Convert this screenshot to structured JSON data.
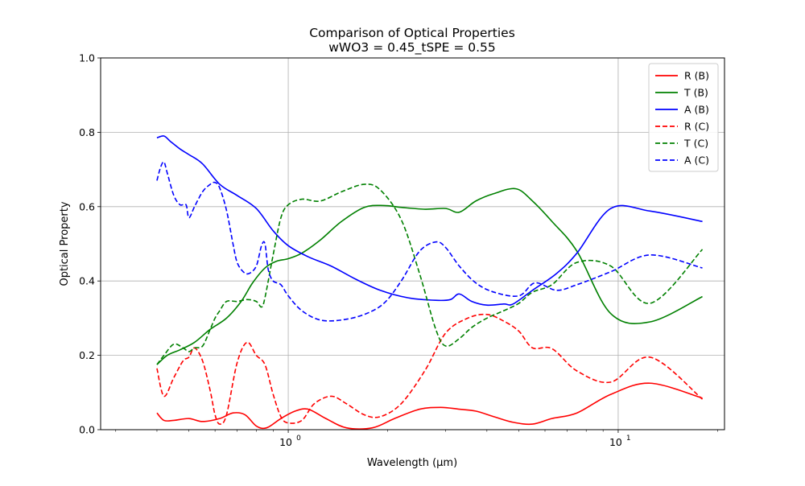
{
  "chart_data": {
    "type": "line",
    "title": "Comparison of Optical Properties",
    "subtitle": "wWO3 = 0.45_tSPE = 0.55",
    "xlabel": "Wavelength (μm)",
    "ylabel": "Optical Property",
    "xscale": "log",
    "xlim": [
      0.27,
      21.0
    ],
    "ylim": [
      0.0,
      1.0
    ],
    "grid": true,
    "legend_position": "top-right",
    "x_ticks": [
      {
        "value": 1,
        "base": "10",
        "exp": "0"
      },
      {
        "value": 10,
        "base": "10",
        "exp": "1"
      }
    ],
    "y_ticks": [
      "0.0",
      "0.2",
      "0.4",
      "0.6",
      "0.8",
      "1.0"
    ],
    "series": [
      {
        "name": "R (B)",
        "color": "#ff0000",
        "dash": "solid",
        "x": [
          0.4,
          0.42,
          0.45,
          0.5,
          0.55,
          0.62,
          0.68,
          0.74,
          0.8,
          0.86,
          0.95,
          1.05,
          1.15,
          1.3,
          1.5,
          1.8,
          2.1,
          2.5,
          2.9,
          3.3,
          3.7,
          4.2,
          4.8,
          5.5,
          6.3,
          7.5,
          9.5,
          12.5,
          18.0
        ],
        "y": [
          0.045,
          0.025,
          0.025,
          0.03,
          0.022,
          0.03,
          0.045,
          0.04,
          0.01,
          0.005,
          0.03,
          0.05,
          0.055,
          0.03,
          0.005,
          0.005,
          0.03,
          0.055,
          0.06,
          0.055,
          0.05,
          0.035,
          0.02,
          0.015,
          0.03,
          0.045,
          0.095,
          0.125,
          0.085
        ]
      },
      {
        "name": "T (B)",
        "color": "#008000",
        "dash": "solid",
        "x": [
          0.4,
          0.43,
          0.47,
          0.52,
          0.58,
          0.65,
          0.72,
          0.78,
          0.85,
          0.92,
          1.0,
          1.1,
          1.25,
          1.45,
          1.7,
          1.95,
          2.2,
          2.6,
          3.0,
          3.3,
          3.7,
          4.2,
          4.9,
          5.5,
          6.3,
          7.5,
          9.5,
          12.5,
          18.0
        ],
        "y": [
          0.175,
          0.2,
          0.215,
          0.235,
          0.27,
          0.3,
          0.345,
          0.395,
          0.435,
          0.453,
          0.46,
          0.475,
          0.51,
          0.56,
          0.598,
          0.603,
          0.598,
          0.593,
          0.595,
          0.585,
          0.615,
          0.635,
          0.648,
          0.615,
          0.56,
          0.48,
          0.312,
          0.29,
          0.358
        ]
      },
      {
        "name": "A (B)",
        "color": "#0000ff",
        "dash": "solid",
        "x": [
          0.4,
          0.42,
          0.44,
          0.47,
          0.5,
          0.55,
          0.62,
          0.7,
          0.8,
          0.9,
          1.0,
          1.15,
          1.35,
          1.6,
          1.9,
          2.3,
          2.8,
          3.1,
          3.3,
          3.6,
          4.0,
          4.5,
          4.8,
          5.5,
          6.5,
          7.5,
          9.5,
          12.5,
          18.0
        ],
        "y": [
          0.785,
          0.79,
          0.775,
          0.755,
          0.74,
          0.715,
          0.66,
          0.63,
          0.595,
          0.535,
          0.495,
          0.465,
          0.44,
          0.405,
          0.375,
          0.355,
          0.348,
          0.35,
          0.365,
          0.345,
          0.335,
          0.338,
          0.338,
          0.375,
          0.42,
          0.475,
          0.595,
          0.588,
          0.56
        ]
      },
      {
        "name": "R (C)",
        "color": "#ff0000",
        "dash": "dashed",
        "x": [
          0.4,
          0.42,
          0.45,
          0.48,
          0.5,
          0.52,
          0.55,
          0.58,
          0.6,
          0.62,
          0.65,
          0.7,
          0.75,
          0.8,
          0.85,
          0.9,
          0.95,
          1.0,
          1.1,
          1.2,
          1.35,
          1.5,
          1.7,
          1.9,
          2.2,
          2.6,
          3.0,
          3.5,
          4.0,
          4.5,
          5.0,
          5.5,
          6.3,
          7.5,
          9.5,
          12.5,
          18.0
        ],
        "y": [
          0.165,
          0.09,
          0.14,
          0.185,
          0.195,
          0.22,
          0.185,
          0.105,
          0.04,
          0.015,
          0.04,
          0.18,
          0.235,
          0.2,
          0.175,
          0.095,
          0.035,
          0.018,
          0.025,
          0.07,
          0.09,
          0.07,
          0.04,
          0.035,
          0.07,
          0.16,
          0.26,
          0.3,
          0.31,
          0.292,
          0.265,
          0.22,
          0.218,
          0.158,
          0.128,
          0.195,
          0.082
        ]
      },
      {
        "name": "T (C)",
        "color": "#008000",
        "dash": "dashed",
        "x": [
          0.4,
          0.42,
          0.45,
          0.48,
          0.5,
          0.52,
          0.55,
          0.58,
          0.6,
          0.62,
          0.65,
          0.7,
          0.75,
          0.8,
          0.83,
          0.85,
          0.9,
          0.95,
          1.0,
          1.1,
          1.25,
          1.45,
          1.7,
          1.9,
          2.2,
          2.5,
          2.8,
          3.0,
          3.3,
          3.6,
          4.0,
          4.5,
          5.0,
          5.5,
          6.3,
          7.5,
          9.5,
          12.5,
          18.0
        ],
        "y": [
          0.175,
          0.2,
          0.23,
          0.22,
          0.21,
          0.22,
          0.225,
          0.27,
          0.3,
          0.32,
          0.345,
          0.345,
          0.35,
          0.345,
          0.33,
          0.355,
          0.47,
          0.57,
          0.605,
          0.62,
          0.615,
          0.64,
          0.66,
          0.645,
          0.565,
          0.42,
          0.27,
          0.225,
          0.245,
          0.275,
          0.3,
          0.32,
          0.34,
          0.37,
          0.39,
          0.45,
          0.44,
          0.34,
          0.485
        ]
      },
      {
        "name": "A (C)",
        "color": "#0000ff",
        "dash": "dashed",
        "x": [
          0.4,
          0.41,
          0.42,
          0.43,
          0.45,
          0.47,
          0.49,
          0.5,
          0.52,
          0.55,
          0.58,
          0.6,
          0.62,
          0.65,
          0.68,
          0.7,
          0.73,
          0.76,
          0.8,
          0.83,
          0.85,
          0.87,
          0.9,
          0.95,
          1.0,
          1.1,
          1.25,
          1.45,
          1.7,
          1.95,
          2.2,
          2.5,
          2.8,
          3.0,
          3.3,
          3.7,
          4.2,
          5.0,
          5.6,
          6.5,
          7.5,
          9.5,
          12.5,
          18.0
        ],
        "y": [
          0.67,
          0.705,
          0.72,
          0.69,
          0.63,
          0.605,
          0.605,
          0.57,
          0.6,
          0.64,
          0.66,
          0.665,
          0.65,
          0.59,
          0.5,
          0.45,
          0.425,
          0.42,
          0.44,
          0.495,
          0.5,
          0.43,
          0.4,
          0.39,
          0.36,
          0.32,
          0.295,
          0.295,
          0.31,
          0.34,
          0.4,
          0.48,
          0.505,
          0.49,
          0.44,
          0.395,
          0.37,
          0.36,
          0.395,
          0.375,
          0.39,
          0.425,
          0.47,
          0.435
        ]
      }
    ]
  }
}
